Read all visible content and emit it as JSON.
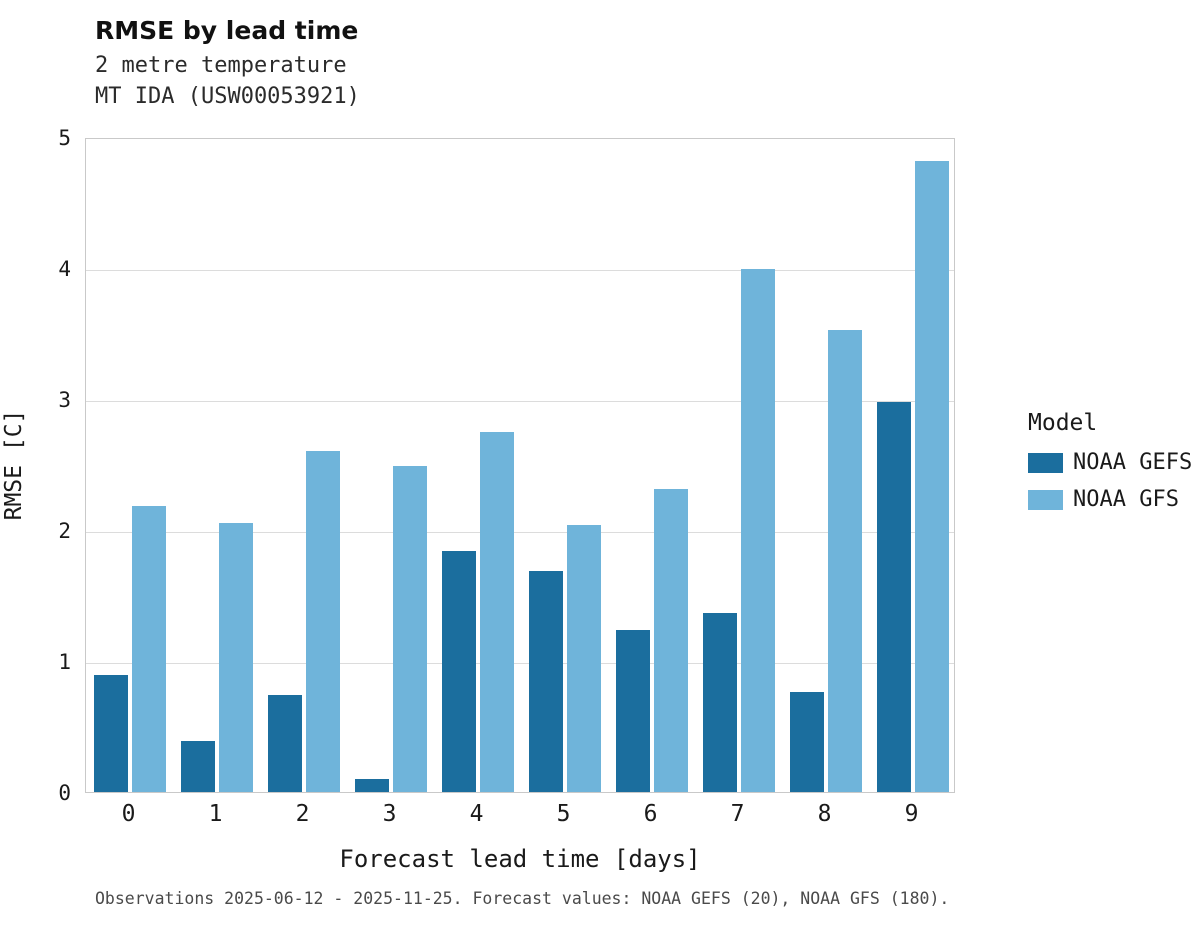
{
  "header": {
    "title": "RMSE by lead time",
    "subtitle1": "2 metre temperature",
    "subtitle2": "MT IDA (USW00053921)"
  },
  "chart_data": {
    "type": "bar",
    "categories": [
      "0",
      "1",
      "2",
      "3",
      "4",
      "5",
      "6",
      "7",
      "8",
      "9"
    ],
    "series": [
      {
        "name": "NOAA GEFS",
        "color": "#1b6e9e",
        "values": [
          0.89,
          0.39,
          0.74,
          0.1,
          1.84,
          1.69,
          1.24,
          1.37,
          0.76,
          2.98
        ]
      },
      {
        "name": "NOAA GFS",
        "color": "#6fb4da",
        "values": [
          2.18,
          2.05,
          2.6,
          2.49,
          2.75,
          2.04,
          2.31,
          3.99,
          3.53,
          4.82
        ]
      }
    ],
    "title": "RMSE by lead time",
    "subtitle": "2 metre temperature — MT IDA (USW00053921)",
    "xlabel": "Forecast lead time [days]",
    "ylabel": "RMSE [C]",
    "ylim": [
      0,
      5
    ],
    "yticks": [
      0,
      1,
      2,
      3,
      4,
      5
    ],
    "grid": true,
    "legend_title": "Model",
    "legend_position": "right"
  },
  "footer": {
    "caption": "Observations 2025-06-12 - 2025-11-25. Forecast values: NOAA GEFS (20), NOAA GFS (180)."
  }
}
